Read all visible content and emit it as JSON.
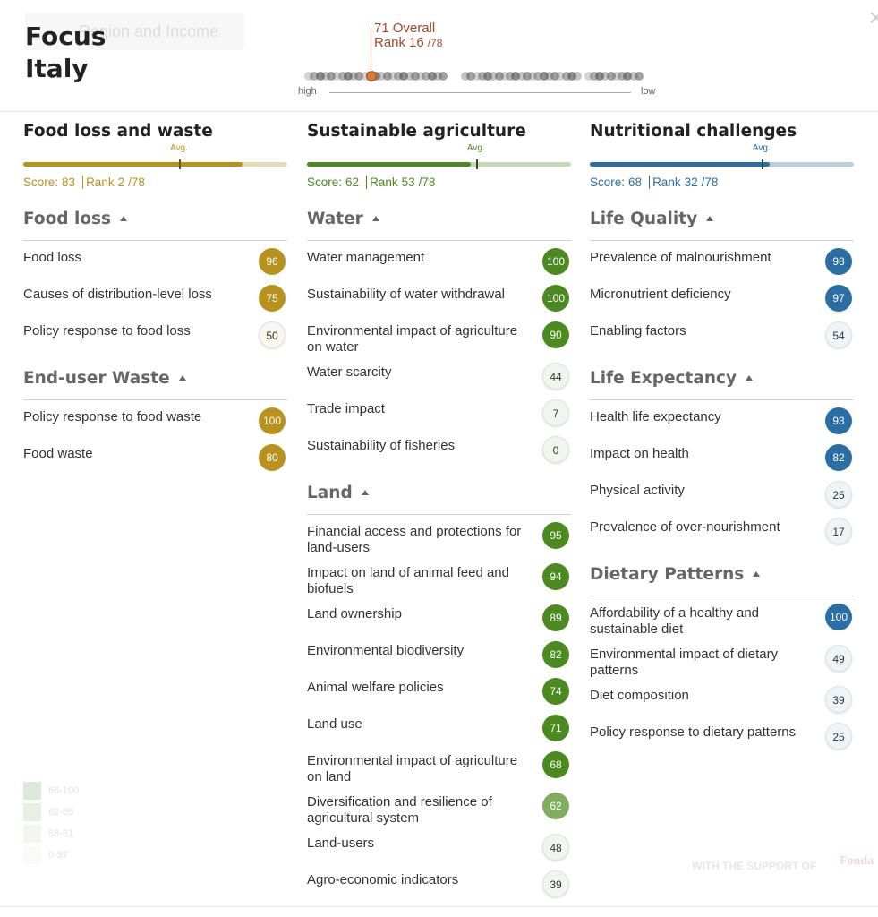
{
  "header": {
    "region_selector": "Region and Income",
    "title": "Focus",
    "country": "Italy",
    "close": "×"
  },
  "overall": {
    "score": 71,
    "score_label": "Overall",
    "rank_label": "Rank",
    "rank": 16,
    "rank_total": {
      "value": 78,
      "label": "/78"
    },
    "scale_high": "high",
    "scale_low": "low"
  },
  "score_range": [
    0,
    100
  ],
  "columns": [
    {
      "title": "Food loss and waste",
      "color": "#b8921c",
      "score_label": "Score:",
      "score": 83,
      "rank_label": "Rank",
      "rank": 2,
      "rank_total": {
        "value": 78,
        "label": "/78"
      },
      "avg_label": "Avg.",
      "avg": 59,
      "sections": [
        {
          "name": "Food loss",
          "items": [
            {
              "label": "Food loss",
              "value": 96
            },
            {
              "label": "Causes of distribution-level loss",
              "value": 75
            },
            {
              "label": "Policy response to food loss",
              "value": 50
            }
          ]
        },
        {
          "name": "End-user Waste",
          "items": [
            {
              "label": "Policy response to food waste",
              "value": 100
            },
            {
              "label": "Food waste",
              "value": 80
            }
          ]
        }
      ]
    },
    {
      "title": "Sustainable agriculture",
      "color": "#4b8a1e",
      "score_label": "Score:",
      "score": 62,
      "rank_label": "Rank",
      "rank": 53,
      "rank_total": {
        "value": 78,
        "label": "/78"
      },
      "avg_label": "Avg.",
      "avg": 64,
      "sections": [
        {
          "name": "Water",
          "items": [
            {
              "label": "Water management",
              "value": 100
            },
            {
              "label": "Sustainability of water withdrawal",
              "value": 100
            },
            {
              "label": "Environmental impact of agriculture on water",
              "value": 90
            },
            {
              "label": "Water scarcity",
              "value": 44
            },
            {
              "label": "Trade impact",
              "value": 7
            },
            {
              "label": "Sustainability of fisheries",
              "value": 0
            }
          ]
        },
        {
          "name": "Land",
          "items": [
            {
              "label": "Financial access and protections for land-users",
              "value": 95
            },
            {
              "label": "Impact on land of animal feed and biofuels",
              "value": 94
            },
            {
              "label": "Land ownership",
              "value": 89
            },
            {
              "label": "Environmental biodiversity",
              "value": 82
            },
            {
              "label": "Animal welfare policies",
              "value": 74
            },
            {
              "label": "Land use",
              "value": 71
            },
            {
              "label": "Environmental impact of agriculture on land",
              "value": 68
            },
            {
              "label": "Diversification and resilience of agricultural system",
              "value": 62
            },
            {
              "label": "Land-users",
              "value": 48
            },
            {
              "label": "Agro-economic indicators",
              "value": 39
            }
          ]
        }
      ]
    },
    {
      "title": "Nutritional challenges",
      "color": "#2a6ea3",
      "score_label": "Score:",
      "score": 68,
      "rank_label": "Rank",
      "rank": 32,
      "rank_total": {
        "value": 78,
        "label": "/78"
      },
      "avg_label": "Avg.",
      "avg": 65,
      "sections": [
        {
          "name": "Life Quality",
          "items": [
            {
              "label": "Prevalence of malnourishment",
              "value": 98
            },
            {
              "label": "Micronutrient deficiency",
              "value": 97
            },
            {
              "label": "Enabling factors",
              "value": 54
            }
          ]
        },
        {
          "name": "Life Expectancy",
          "items": [
            {
              "label": "Health life expectancy",
              "value": 93
            },
            {
              "label": "Impact on health",
              "value": 82
            },
            {
              "label": "Physical activity",
              "value": 25
            },
            {
              "label": "Prevalence of over-nourishment",
              "value": 17
            }
          ]
        },
        {
          "name": "Dietary Patterns",
          "items": [
            {
              "label": "Affordability of a healthy and sustainable diet",
              "value": 100
            },
            {
              "label": "Environmental impact of dietary patterns",
              "value": 49
            },
            {
              "label": "Diet composition",
              "value": 39
            },
            {
              "label": "Policy response to dietary patterns",
              "value": 25
            }
          ]
        }
      ]
    }
  ],
  "legend": [
    {
      "min": 66,
      "max": 100,
      "label": "66-100"
    },
    {
      "min": 62,
      "max": 65,
      "label": "62-65"
    },
    {
      "min": 58,
      "max": 61,
      "label": "58-61"
    },
    {
      "min": 0,
      "max": 57,
      "label": "0-57"
    }
  ],
  "footer": {
    "support": "WITH THE SUPPORT OF",
    "sponsor": "Fonda"
  }
}
